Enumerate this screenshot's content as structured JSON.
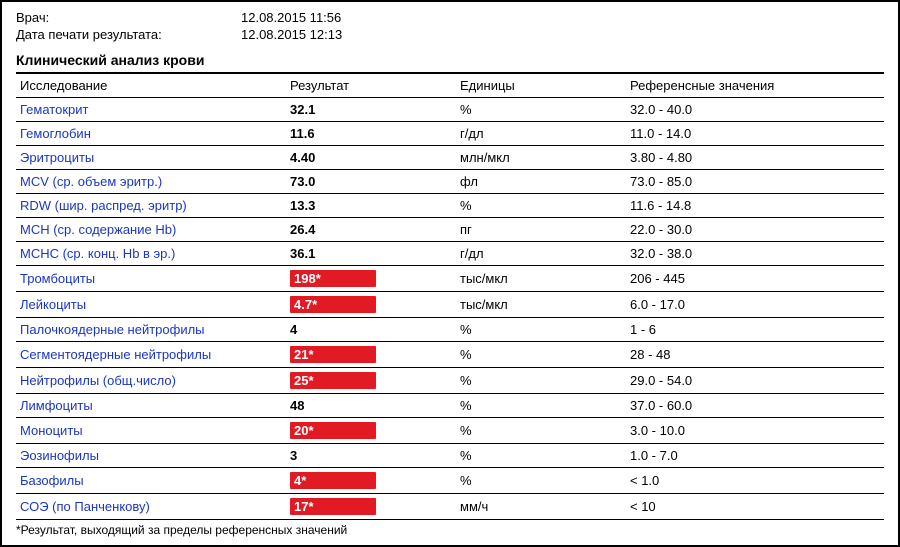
{
  "meta": {
    "doctor_label": "Врач:",
    "doctor_value": "12.08.2015 11:56",
    "print_label": "Дата печати результата:",
    "print_value": "12.08.2015 12:13"
  },
  "section_title": "Клинический анализ крови",
  "headers": {
    "name": "Исследование",
    "result": "Результат",
    "units": "Единицы",
    "ref": "Референсные значения"
  },
  "rows": [
    {
      "name": "Гематокрит",
      "result": "32.1",
      "flag": false,
      "units": "%",
      "ref": "32.0 - 40.0"
    },
    {
      "name": "Гемоглобин",
      "result": "11.6",
      "flag": false,
      "units": "г/дл",
      "ref": "11.0 - 14.0"
    },
    {
      "name": "Эритроциты",
      "result": "4.40",
      "flag": false,
      "units": "млн/мкл",
      "ref": "3.80 - 4.80"
    },
    {
      "name": "MCV (ср. объем эритр.)",
      "result": "73.0",
      "flag": false,
      "units": "фл",
      "ref": "73.0 - 85.0"
    },
    {
      "name": "RDW (шир. распред. эритр)",
      "result": "13.3",
      "flag": false,
      "units": "%",
      "ref": "11.6 - 14.8"
    },
    {
      "name": "MCH (ср. содержание Hb)",
      "result": "26.4",
      "flag": false,
      "units": "пг",
      "ref": "22.0 - 30.0"
    },
    {
      "name": "MCHC (ср. конц. Hb в эр.)",
      "result": "36.1",
      "flag": false,
      "units": "г/дл",
      "ref": "32.0 - 38.0"
    },
    {
      "name": "Тромбоциты",
      "result": "198*",
      "flag": true,
      "units": "тыс/мкл",
      "ref": "206 - 445"
    },
    {
      "name": "Лейкоциты",
      "result": "4.7*",
      "flag": true,
      "units": "тыс/мкл",
      "ref": "6.0 - 17.0"
    },
    {
      "name": "Палочкоядерные нейтрофилы",
      "result": "4",
      "flag": false,
      "units": "%",
      "ref": "1 - 6"
    },
    {
      "name": "Сегментоядерные нейтрофилы",
      "result": "21*",
      "flag": true,
      "units": "%",
      "ref": "28 - 48"
    },
    {
      "name": "Нейтрофилы (общ.число)",
      "result": "25*",
      "flag": true,
      "units": "%",
      "ref": "29.0 - 54.0"
    },
    {
      "name": "Лимфоциты",
      "result": "48",
      "flag": false,
      "units": "%",
      "ref": "37.0 - 60.0"
    },
    {
      "name": "Моноциты",
      "result": "20*",
      "flag": true,
      "units": "%",
      "ref": "3.0 - 10.0"
    },
    {
      "name": "Эозинофилы",
      "result": "3",
      "flag": false,
      "units": "%",
      "ref": "1.0 - 7.0"
    },
    {
      "name": "Базофилы",
      "result": "4*",
      "flag": true,
      "units": "%",
      "ref": "< 1.0"
    },
    {
      "name": "СОЭ (по Панченкову)",
      "result": "17*",
      "flag": true,
      "units": "мм/ч",
      "ref": "< 10"
    }
  ],
  "footnote": "*Результат, выходящий за пределы референсных значений",
  "styles": {
    "name_color": "#1a35c7",
    "flag_bg": "#e21a23",
    "flag_fg": "#ffffff",
    "border_color": "#000000",
    "font_size_body": 13,
    "font_size_title": 14
  }
}
